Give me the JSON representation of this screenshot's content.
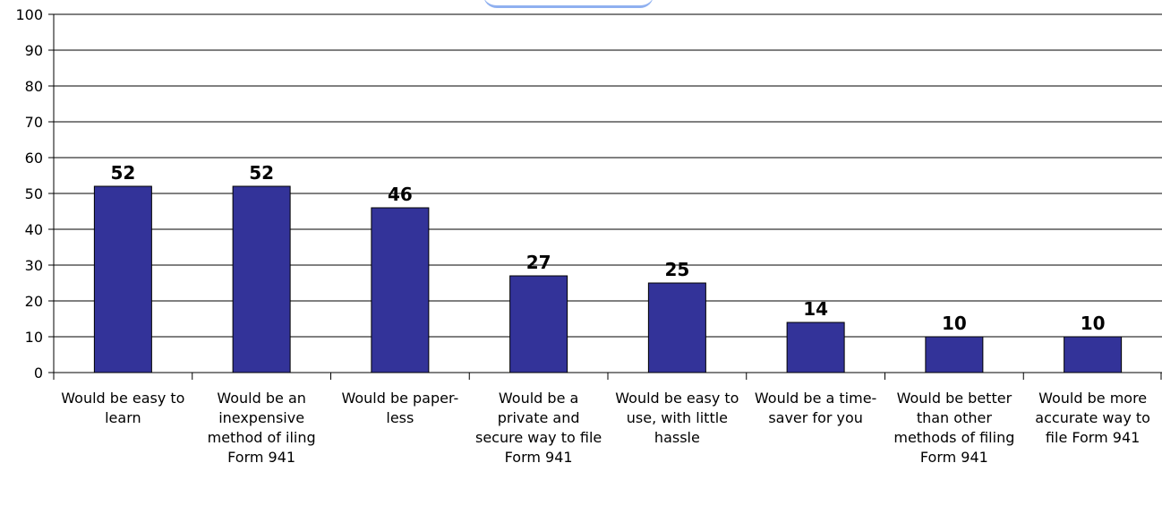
{
  "chart_data": {
    "type": "bar",
    "categories": [
      "Would be easy to learn",
      "Would be an inexpensive method of iling Form 941",
      "Would be paper-less",
      "Would be a private and secure way to file Form 941",
      "Would be easy to use, with little hassle",
      "Would be a time-saver for you",
      "Would be better than other methods of filing Form 941",
      "Would be more accurate way to file Form 941"
    ],
    "values": [
      52,
      52,
      46,
      27,
      25,
      14,
      10,
      10
    ],
    "ylim": [
      0,
      100
    ],
    "yticks": [
      0,
      10,
      20,
      30,
      40,
      50,
      60,
      70,
      80,
      90,
      100
    ],
    "grid": true,
    "data_labels": true,
    "colors": {
      "bar": "#333399",
      "bar_border": "#000000",
      "grid": "#000000"
    }
  }
}
